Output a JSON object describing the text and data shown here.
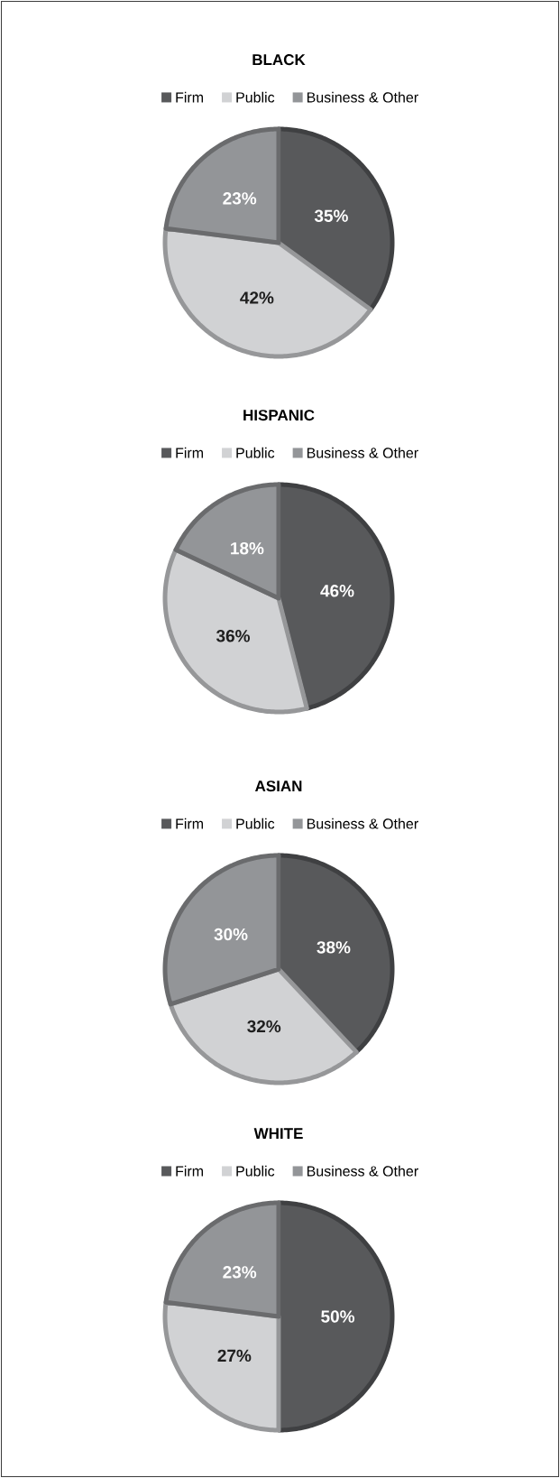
{
  "chart_data": [
    {
      "type": "pie",
      "title": "BLACK",
      "categories": [
        "Firm",
        "Public",
        "Business & Other"
      ],
      "values": [
        35,
        42,
        23
      ],
      "colors": [
        "#58595b",
        "#d1d2d4",
        "#939598"
      ],
      "value_labels": [
        "35%",
        "42%",
        "23%"
      ],
      "legend": "top"
    },
    {
      "type": "pie",
      "title": "HISPANIC",
      "categories": [
        "Firm",
        "Public",
        "Business & Other"
      ],
      "values": [
        46,
        36,
        18
      ],
      "colors": [
        "#58595b",
        "#d1d2d4",
        "#939598"
      ],
      "value_labels": [
        "46%",
        "36%",
        "18%"
      ],
      "legend": "top"
    },
    {
      "type": "pie",
      "title": "ASIAN",
      "categories": [
        "Firm",
        "Public",
        "Business & Other"
      ],
      "values": [
        38,
        32,
        30
      ],
      "colors": [
        "#58595b",
        "#d1d2d4",
        "#939598"
      ],
      "value_labels": [
        "38%",
        "32%",
        "30%"
      ],
      "legend": "top"
    },
    {
      "type": "pie",
      "title": "WHITE",
      "categories": [
        "Firm",
        "Public",
        "Business & Other"
      ],
      "values": [
        50,
        27,
        23
      ],
      "colors": [
        "#58595b",
        "#d1d2d4",
        "#939598"
      ],
      "value_labels": [
        "50%",
        "27%",
        "23%"
      ],
      "legend": "top"
    }
  ]
}
